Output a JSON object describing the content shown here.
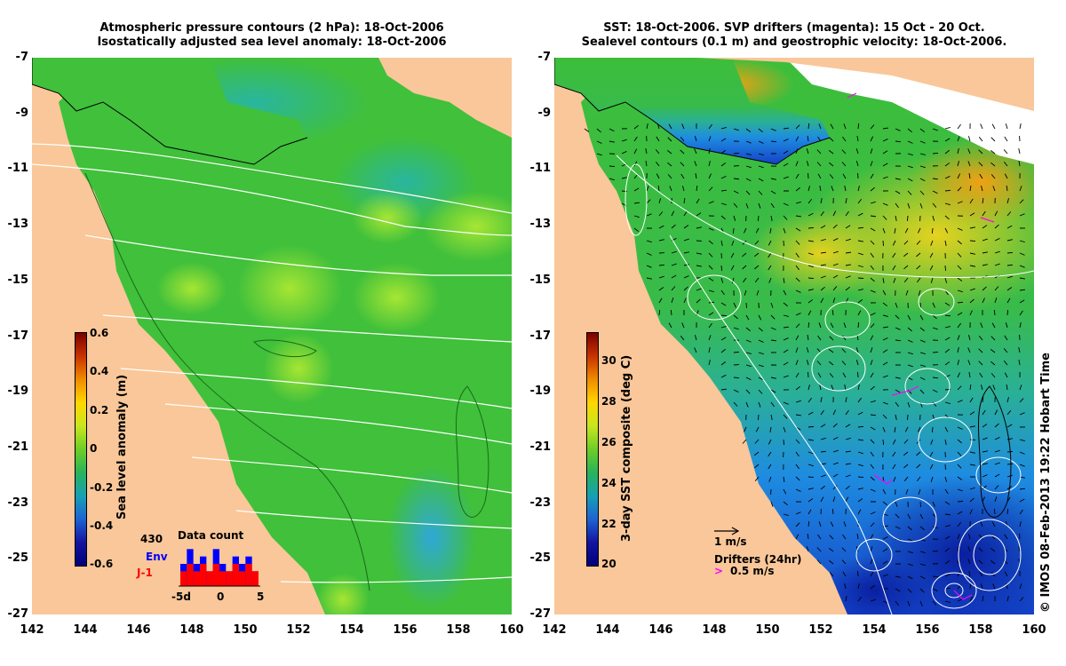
{
  "left_panel": {
    "title_line1": "Atmospheric pressure contours (2 hPa): 18-Oct-2006",
    "title_line2": "Isostatically adjusted sea level anomaly: 18-Oct-2006",
    "colorbar": {
      "label": "Sea level anomaly (m)",
      "ticks": [
        "0.6",
        "0.4",
        "0.2",
        "0",
        "-0.2",
        "-0.4",
        "-0.6"
      ]
    },
    "data_count": {
      "total": "430",
      "title": "Data count",
      "series": [
        {
          "name": "Env",
          "color": "#0000ff",
          "values": [
            3,
            5,
            3,
            4,
            2,
            5,
            3,
            2,
            4,
            3,
            4,
            2
          ]
        },
        {
          "name": "J-1",
          "color": "#ff0000",
          "values": [
            2,
            3,
            2,
            3,
            2,
            3,
            2,
            2,
            3,
            2,
            3,
            2
          ]
        }
      ],
      "x_ticks": [
        "-5d",
        "0",
        "5"
      ]
    }
  },
  "right_panel": {
    "title_line1": "SST: 18-Oct-2006. SVP drifters (magenta): 15 Oct - 20 Oct.",
    "title_line2": "Sealevel contours (0.1 m) and geostrophic velocity: 18-Oct-2006.",
    "colorbar": {
      "label": "3-day SST composite (deg C)",
      "ticks": [
        "30",
        "28",
        "26",
        "24",
        "22",
        "20"
      ]
    },
    "velocity_key": "1 m/s",
    "drifter_key_title": "Drifters (24hr)",
    "drifter_key_value": "0.5 m/s"
  },
  "axes": {
    "lat_ticks": [
      "-7",
      "-9",
      "-11",
      "-13",
      "-15",
      "-17",
      "-19",
      "-21",
      "-23",
      "-25",
      "-27"
    ],
    "lon_ticks": [
      "142",
      "144",
      "146",
      "148",
      "150",
      "152",
      "154",
      "156",
      "158",
      "160"
    ]
  },
  "credit": "© IMOS 08-Feb-2013 19:22 Hobart Time",
  "colors": {
    "land": "#f9c799",
    "ocean_green": "#3dbe3a",
    "ocean_blue": "#1e78ff",
    "drifter": "#ff00ff"
  }
}
